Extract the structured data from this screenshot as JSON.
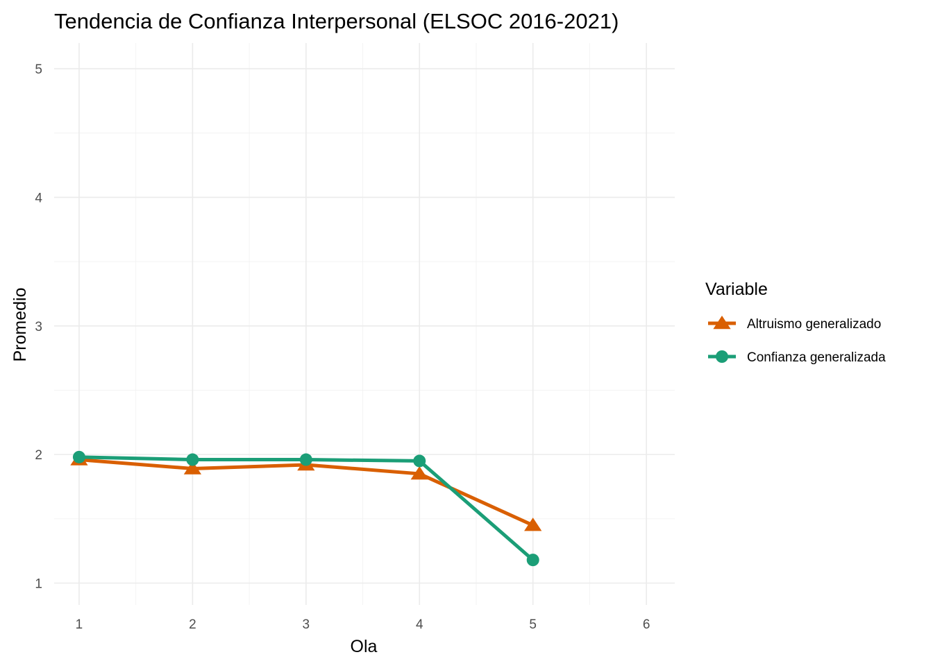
{
  "chart_data": {
    "type": "line",
    "title": "Tendencia de Confianza Interpersonal (ELSOC 2016-2021)",
    "xlabel": "Ola",
    "ylabel": "Promedio",
    "x": [
      1,
      2,
      3,
      4,
      5
    ],
    "xlim": [
      0.78,
      6.25
    ],
    "ylim": [
      0.83,
      5.2
    ],
    "x_ticks": [
      1,
      2,
      3,
      4,
      5,
      6
    ],
    "y_ticks": [
      1,
      2,
      3,
      4,
      5
    ],
    "x_tick_labels": [
      "1",
      "2",
      "3",
      "4",
      "5",
      "6"
    ],
    "y_tick_labels": [
      "1",
      "2",
      "3",
      "4",
      "5"
    ],
    "grid": true,
    "legend_title": "Variable",
    "legend_position": "right",
    "series": [
      {
        "name": "Altruismo generalizado",
        "color": "#D95F02",
        "marker": "triangle",
        "values": [
          1.96,
          1.89,
          1.92,
          1.85,
          1.45
        ]
      },
      {
        "name": "Confianza generalizada",
        "color": "#1B9E77",
        "marker": "circle",
        "values": [
          1.98,
          1.96,
          1.96,
          1.95,
          1.18
        ]
      }
    ]
  }
}
